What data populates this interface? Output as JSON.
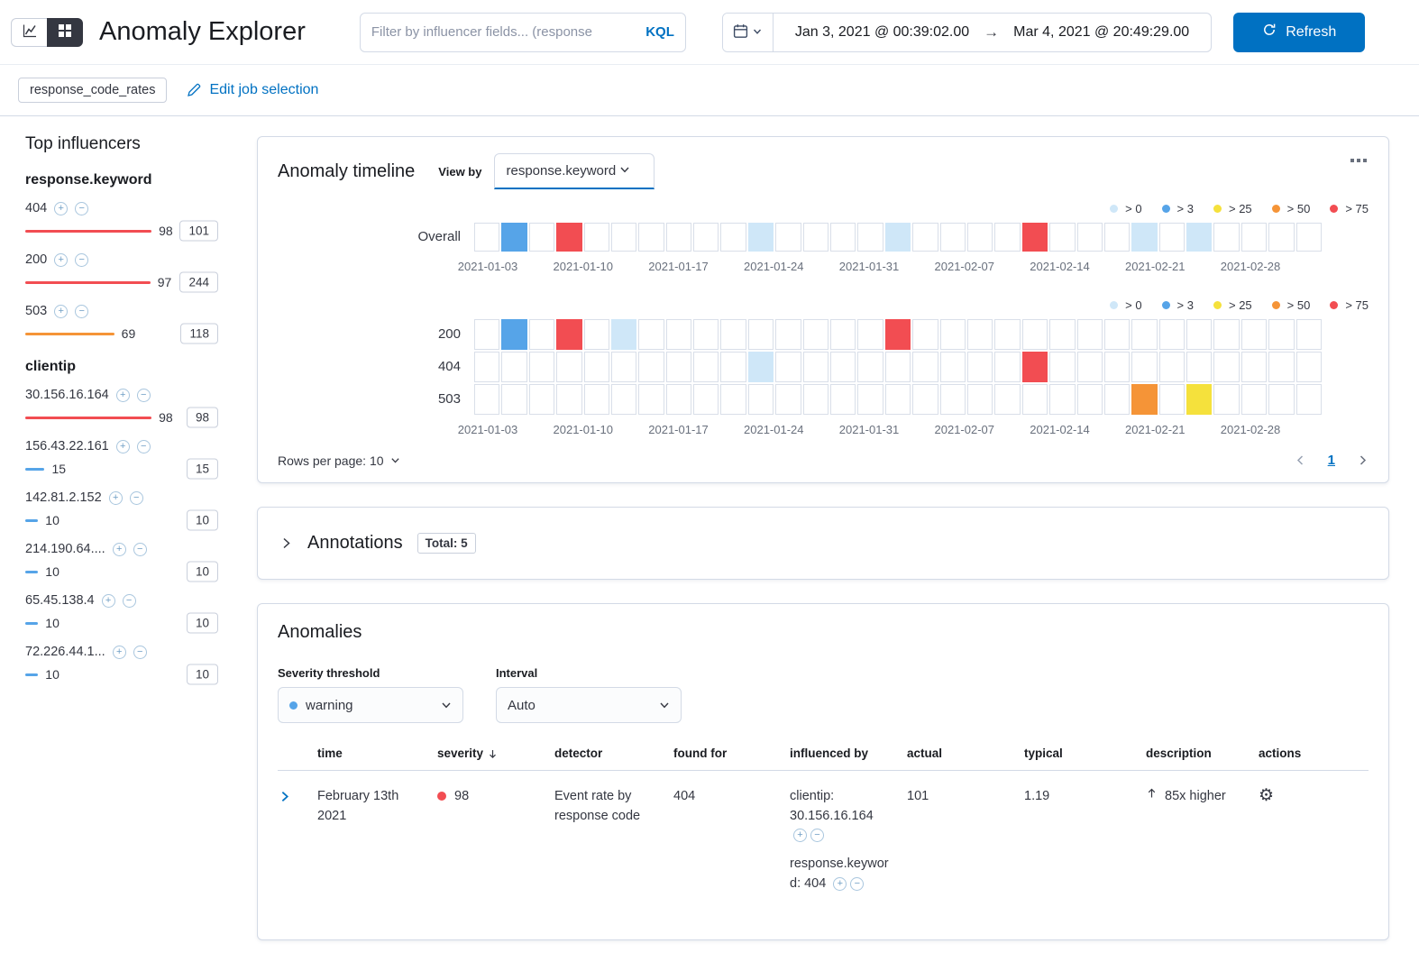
{
  "colors": {
    "primary": "#0071c2",
    "text": "#343741",
    "border": "#d3dae6",
    "severity_gt0": "#cfe7f8",
    "severity_gt3": "#56a4e8",
    "severity_gt25": "#f5e13c",
    "severity_gt50": "#f59437",
    "severity_gt75": "#f24d52"
  },
  "header": {
    "title": "Anomaly Explorer",
    "filter_placeholder": "Filter by influencer fields... (response",
    "kql_label": "KQL",
    "date_start": "Jan 3, 2021 @ 00:39:02.00",
    "date_arrow": "→",
    "date_end": "Mar 4, 2021 @ 20:49:29.00",
    "refresh_label": "Refresh"
  },
  "job_bar": {
    "job_badge": "response_code_rates",
    "edit_link": "Edit job selection"
  },
  "influencers": {
    "title": "Top influencers",
    "groups": [
      {
        "field": "response.keyword",
        "items": [
          {
            "name": "404",
            "value": "98",
            "badge": "101",
            "pct": 98,
            "level": "gt75"
          },
          {
            "name": "200",
            "value": "97",
            "badge": "244",
            "pct": 97,
            "level": "gt75"
          },
          {
            "name": "503",
            "value": "69",
            "badge": "118",
            "pct": 69,
            "level": "gt50"
          }
        ]
      },
      {
        "field": "clientip",
        "items": [
          {
            "name": "30.156.16.164",
            "value": "98",
            "badge": "98",
            "pct": 98,
            "level": "gt75"
          },
          {
            "name": "156.43.22.161",
            "value": "15",
            "badge": "15",
            "pct": 15,
            "level": "gt3"
          },
          {
            "name": "142.81.2.152",
            "value": "10",
            "badge": "10",
            "pct": 10,
            "level": "gt3"
          },
          {
            "name": "214.190.64....",
            "value": "10",
            "badge": "10",
            "pct": 10,
            "level": "gt3"
          },
          {
            "name": "65.45.138.4",
            "value": "10",
            "badge": "10",
            "pct": 10,
            "level": "gt3"
          },
          {
            "name": "72.226.44.1...",
            "value": "10",
            "badge": "10",
            "pct": 10,
            "level": "gt3"
          }
        ]
      }
    ]
  },
  "timeline": {
    "title": "Anomaly timeline",
    "view_by_label": "View by",
    "view_by_value": "response.keyword",
    "legend": [
      {
        "label": "> 0",
        "level": "gt0"
      },
      {
        "label": "> 3",
        "level": "gt3"
      },
      {
        "label": "> 25",
        "level": "gt25"
      },
      {
        "label": "> 50",
        "level": "gt50"
      },
      {
        "label": "> 75",
        "level": "gt75"
      }
    ],
    "axis_labels": [
      "2021-01-03",
      "2021-01-10",
      "2021-01-17",
      "2021-01-24",
      "2021-01-31",
      "2021-02-07",
      "2021-02-14",
      "2021-02-21",
      "2021-02-28"
    ],
    "num_cells": 31,
    "overall_lane": {
      "label": "Overall",
      "cells": [
        {
          "index": 1,
          "level": "gt3"
        },
        {
          "index": 3,
          "level": "gt75"
        },
        {
          "index": 10,
          "level": "gt0"
        },
        {
          "index": 15,
          "level": "gt0"
        },
        {
          "index": 20,
          "level": "gt75"
        },
        {
          "index": 24,
          "level": "gt0"
        },
        {
          "index": 26,
          "level": "gt0"
        }
      ]
    },
    "lanes": [
      {
        "label": "200",
        "cells": [
          {
            "index": 1,
            "level": "gt3"
          },
          {
            "index": 3,
            "level": "gt75"
          },
          {
            "index": 5,
            "level": "gt0"
          },
          {
            "index": 15,
            "level": "gt75"
          }
        ]
      },
      {
        "label": "404",
        "cells": [
          {
            "index": 10,
            "level": "gt0"
          },
          {
            "index": 20,
            "level": "gt75"
          }
        ]
      },
      {
        "label": "503",
        "cells": [
          {
            "index": 24,
            "level": "gt50"
          },
          {
            "index": 26,
            "level": "gt25"
          }
        ]
      }
    ],
    "rows_per_page": "Rows per page: 10",
    "page": "1"
  },
  "annotations": {
    "title": "Annotations",
    "total_badge": "Total: 5"
  },
  "anomalies": {
    "title": "Anomalies",
    "severity_label": "Severity threshold",
    "severity_value": "warning",
    "interval_label": "Interval",
    "interval_value": "Auto",
    "columns": [
      "time",
      "severity",
      "detector",
      "found for",
      "influenced by",
      "actual",
      "typical",
      "description",
      "actions"
    ],
    "rows": [
      {
        "time": "February 13th 2021",
        "severity": "98",
        "severity_level": "gt75",
        "detector": "Event rate by response code",
        "found_for": "404",
        "influenced_by": [
          "clientip: 30.156.16.164",
          "response.keyword: 404"
        ],
        "actual": "101",
        "typical": "1.19",
        "description": "85x higher"
      }
    ]
  }
}
